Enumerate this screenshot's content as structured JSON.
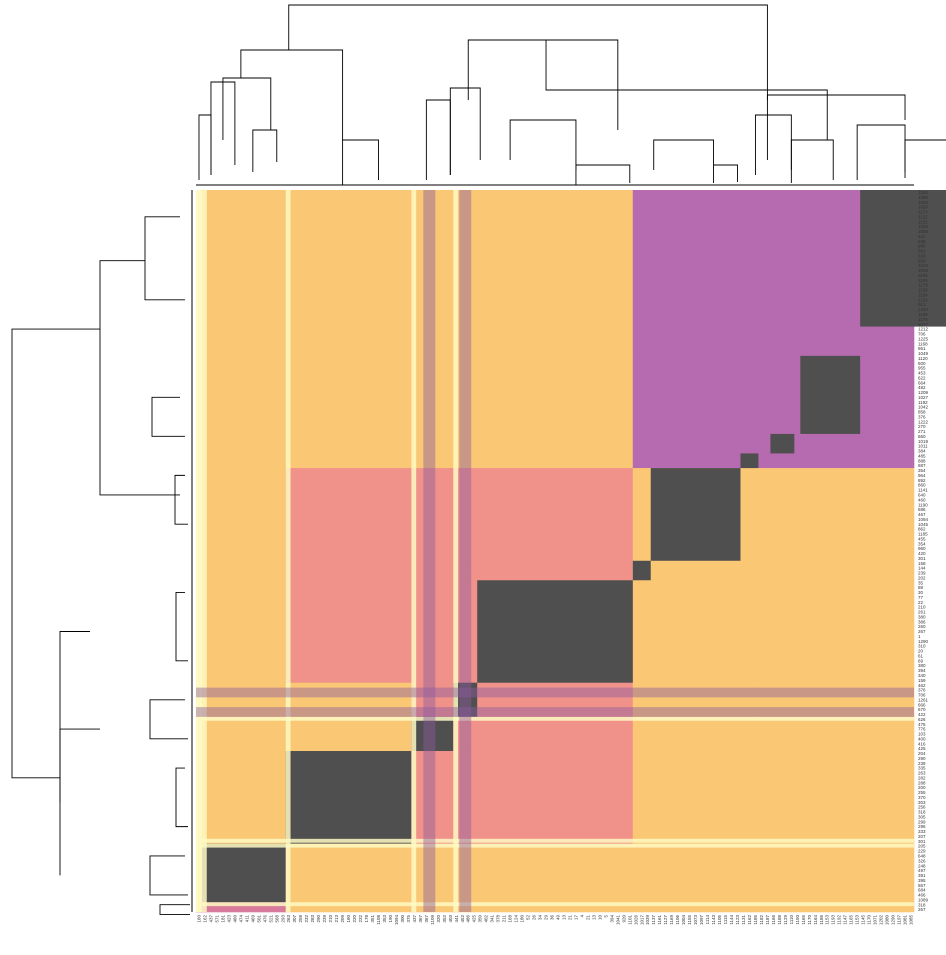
{
  "chart_data": {
    "type": "heatmap",
    "title": "",
    "clustered": true,
    "dendrograms": [
      "top",
      "left"
    ],
    "grid": false,
    "legend": "none",
    "palette": {
      "very_light": "#FEF9C3",
      "light": "#FDE7A0",
      "orange": "#FAC875",
      "salmon": "#F0928A",
      "pink": "#D77A9C",
      "magenta": "#B66AAF",
      "purple": "#8B5C9C",
      "dark": "#4F4F4F"
    },
    "row_labels_right": [
      "1320",
      "1290",
      "1050",
      "1020",
      "1174",
      "1122",
      "1152",
      "1202",
      "1008",
      "441",
      "636",
      "866",
      "981",
      "630",
      "659",
      "1019",
      "1006",
      "1109",
      "1195",
      "1275",
      "1108",
      "1154",
      "1124",
      "913",
      "1260",
      "1198",
      "1175",
      "1077",
      "1212",
      "706",
      "1225",
      "1168",
      "861",
      "1049",
      "1120",
      "600",
      "955",
      "453",
      "622",
      "664",
      "482",
      "1209",
      "1027",
      "1192",
      "1042",
      "858",
      "376",
      "1222",
      "270",
      "271",
      "660",
      "1019",
      "1011",
      "384",
      "485",
      "888",
      "887",
      "354",
      "964",
      "892",
      "860",
      "1141",
      "640",
      "460",
      "1190",
      "686",
      "467",
      "1094",
      "1045",
      "862",
      "1185",
      "455",
      "354",
      "960",
      "420",
      "301",
      "158",
      "144",
      "239",
      "202",
      "35",
      "88",
      "30",
      "77",
      "22",
      "210",
      "261",
      "380",
      "386",
      "260",
      "267",
      "1",
      "1290",
      "310",
      "20",
      "61",
      "69",
      "380",
      "394",
      "340",
      "159",
      "462",
      "376",
      "706",
      "1261",
      "666",
      "670",
      "422",
      "626",
      "475",
      "776",
      "103",
      "400",
      "416",
      "425",
      "204",
      "290",
      "239",
      "335",
      "263",
      "282",
      "288",
      "200",
      "255",
      "370",
      "303",
      "256",
      "318",
      "305",
      "299",
      "296",
      "333",
      "207",
      "301",
      "205",
      "229",
      "648",
      "326",
      "248",
      "497",
      "391",
      "395",
      "557",
      "684",
      "466",
      "1089",
      "318",
      "267"
    ],
    "col_labels_bottom": [
      "160",
      "162",
      "437",
      "571",
      "181",
      "423",
      "460",
      "474",
      "411",
      "469",
      "501",
      "476",
      "521",
      "568",
      "293",
      "263",
      "307",
      "258",
      "232",
      "283",
      "290",
      "239",
      "210",
      "213",
      "209",
      "160",
      "220",
      "232",
      "178",
      "351",
      "1108",
      "353",
      "190",
      "1094",
      "300",
      "375",
      "437",
      "367",
      "367",
      "1109",
      "320",
      "352",
      "403",
      "441",
      "452",
      "486",
      "425",
      "350",
      "402",
      "341",
      "378",
      "211",
      "168",
      "124",
      "180",
      "52",
      "26",
      "34",
      "29",
      "36",
      "49",
      "13",
      "21",
      "17",
      "4",
      "21",
      "13",
      "10",
      "5",
      "394",
      "1041",
      "920",
      "1101",
      "1026",
      "1017",
      "1039",
      "1137",
      "1161",
      "1127",
      "1169",
      "1106",
      "1004",
      "1155",
      "1073",
      "1097",
      "1114",
      "1143",
      "1105",
      "1115",
      "1144",
      "1123",
      "1131",
      "1162",
      "1185",
      "1182",
      "1187",
      "1166",
      "1188",
      "1129",
      "1110",
      "1150",
      "1165",
      "1170",
      "1164",
      "1186",
      "1153",
      "1193",
      "1192",
      "1147",
      "1165",
      "1153",
      "1145",
      "1170",
      "1071",
      "1202",
      "1080",
      "1290",
      "1197",
      "1081",
      "1085"
    ],
    "matrix_blocks": [
      {
        "rows": [
          0,
          28
        ],
        "cols": [
          111,
          136
        ],
        "level": "dark"
      },
      {
        "rows": [
          34,
          50
        ],
        "cols": [
          101,
          111
        ],
        "level": "dark"
      },
      {
        "rows": [
          50,
          54
        ],
        "cols": [
          96,
          100
        ],
        "level": "dark"
      },
      {
        "rows": [
          54,
          57
        ],
        "cols": [
          91,
          94
        ],
        "level": "dark"
      },
      {
        "rows": [
          57,
          76
        ],
        "cols": [
          76,
          91
        ],
        "level": "dark"
      },
      {
        "rows": [
          76,
          80
        ],
        "cols": [
          73,
          76
        ],
        "level": "dark"
      },
      {
        "rows": [
          80,
          101
        ],
        "cols": [
          47,
          73
        ],
        "level": "dark"
      },
      {
        "rows": [
          101,
          108
        ],
        "cols": [
          43,
          47
        ],
        "level": "dark"
      },
      {
        "rows": [
          108,
          115
        ],
        "cols": [
          36,
          43
        ],
        "level": "dark"
      },
      {
        "rows": [
          115,
          134
        ],
        "cols": [
          15,
          36
        ],
        "level": "dark"
      },
      {
        "rows": [
          134,
          146
        ],
        "cols": [
          1,
          15
        ],
        "level": "dark"
      },
      {
        "rows": [
          146,
          148
        ],
        "cols": [
          0,
          1
        ],
        "level": "dark"
      }
    ],
    "background_levels": [
      "very_light",
      "light",
      "orange",
      "salmon",
      "pink",
      "magenta",
      "purple",
      "dark"
    ]
  }
}
